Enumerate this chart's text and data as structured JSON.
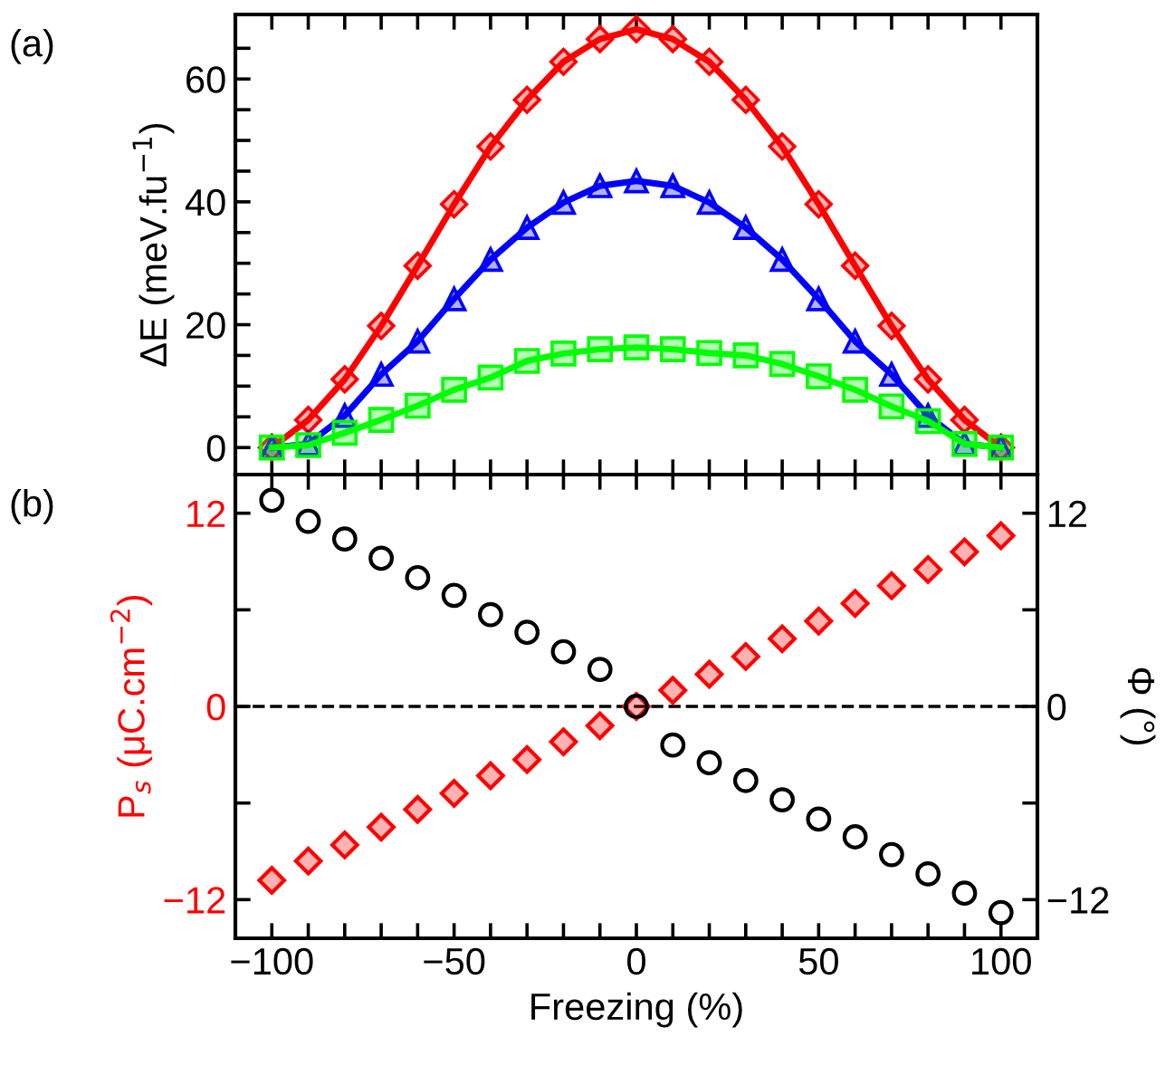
{
  "chart_data": [
    {
      "type": "line",
      "annotations": [
        "(a)"
      ],
      "ylabel": "ΔE (meV.fu$^{−1}$)",
      "x": [
        -100,
        -90,
        -80,
        -70,
        -60,
        -50,
        -40,
        -30,
        -20,
        -10,
        0,
        10,
        20,
        30,
        40,
        50,
        60,
        70,
        80,
        90,
        100
      ],
      "series": [
        {
          "color": "#ff0000",
          "marker": "diamond",
          "values": [
            0,
            4.5,
            11.1,
            19.8,
            29.6,
            39.6,
            49,
            56.6,
            62.8,
            66.5,
            68.1,
            66.5,
            62.8,
            56.6,
            49,
            39.6,
            29.6,
            19.8,
            11.1,
            4.5,
            0
          ]
        },
        {
          "color": "#0000ff",
          "marker": "triangle",
          "values": [
            0,
            0.6,
            5.2,
            11.9,
            17.3,
            24.2,
            30.6,
            35.8,
            39.9,
            42.6,
            43.4,
            42.6,
            39.9,
            35.8,
            30.6,
            24.2,
            17.3,
            11.9,
            5.2,
            0.6,
            0
          ]
        },
        {
          "color": "#00ff00",
          "marker": "square",
          "values": [
            0,
            0.4,
            2.4,
            4.5,
            6.8,
            9.4,
            11.4,
            14.1,
            15.3,
            16.0,
            16.3,
            16.0,
            15.4,
            15.0,
            13.6,
            11.6,
            9.4,
            6.7,
            4.3,
            0.6,
            0
          ]
        }
      ],
      "xlim": [
        -110,
        110
      ],
      "xticks": [
        -100,
        {
          "value": -90,
          "label": null
        },
        {
          "value": -80,
          "label": null
        },
        {
          "value": -70,
          "label": null
        },
        {
          "value": -60,
          "label": null
        },
        -50,
        {
          "value": -40,
          "label": null
        },
        {
          "value": -30,
          "label": null
        },
        {
          "value": -20,
          "label": null
        },
        {
          "value": -10,
          "label": null
        },
        0,
        {
          "value": 10,
          "label": null
        },
        {
          "value": 20,
          "label": null
        },
        {
          "value": 30,
          "label": null
        },
        {
          "value": 40,
          "label": null
        },
        50,
        {
          "value": 60,
          "label": null
        },
        {
          "value": 70,
          "label": null
        },
        {
          "value": 80,
          "label": null
        },
        {
          "value": 90,
          "label": null
        },
        100
      ],
      "ylim": [
        -4.4,
        70.5
      ],
      "yticks": [
        0,
        {
          "value": 5,
          "label": null
        },
        {
          "value": 10,
          "label": null
        },
        {
          "value": 15,
          "label": null
        },
        20,
        {
          "value": 25,
          "label": null
        },
        {
          "value": 30,
          "label": null
        },
        {
          "value": 35,
          "label": null
        },
        40,
        {
          "value": 45,
          "label": null
        },
        {
          "value": 50,
          "label": null
        },
        {
          "value": 55,
          "label": null
        },
        60,
        {
          "value": 65,
          "label": null
        }
      ],
      "tick_labels": "y",
      "grid": false,
      "legend": false,
      "line_style": "solid"
    },
    {
      "type": "scatter",
      "annotations": [
        "(b)"
      ],
      "xlabel": "Freezing (%)",
      "ylabel": "P$_{s}$ (μC.cm$^{−2}$)",
      "y2label": "Φ (°)",
      "x": [
        -100,
        -90,
        -80,
        -70,
        -60,
        -50,
        -40,
        -30,
        -20,
        -10,
        0,
        10,
        20,
        30,
        40,
        50,
        60,
        70,
        80,
        90,
        100
      ],
      "series": [
        {
          "color": "#ff0000",
          "marker": "diamond",
          "values": [
            -10.8,
            -9.6,
            -8.6,
            -7.5,
            -6.4,
            -5.4,
            -4.3,
            -3.3,
            -2.2,
            -1.2,
            0,
            1.0,
            2.0,
            3.1,
            4.2,
            5.3,
            6.4,
            7.5,
            8.5,
            9.6,
            10.6
          ]
        },
        {
          "color": "#000000",
          "marker": "circle",
          "axis": "y2",
          "values": [
            12.8,
            11.5,
            10.4,
            9.2,
            8.0,
            6.9,
            5.7,
            4.6,
            3.4,
            2.3,
            0,
            -2.4,
            -3.5,
            -4.6,
            -5.8,
            -7.0,
            -8.1,
            -9.2,
            -10.4,
            -11.6,
            -12.8
          ]
        }
      ],
      "xlim": [
        -110,
        110
      ],
      "xticks": [
        -100,
        {
          "value": -90,
          "label": null
        },
        {
          "value": -80,
          "label": null
        },
        {
          "value": -70,
          "label": null
        },
        {
          "value": -60,
          "label": null
        },
        -50,
        {
          "value": -40,
          "label": null
        },
        {
          "value": -30,
          "label": null
        },
        {
          "value": -20,
          "label": null
        },
        {
          "value": -10,
          "label": null
        },
        0,
        {
          "value": 10,
          "label": null
        },
        {
          "value": 20,
          "label": null
        },
        {
          "value": 30,
          "label": null
        },
        {
          "value": 40,
          "label": null
        },
        50,
        {
          "value": 60,
          "label": null
        },
        {
          "value": 70,
          "label": null
        },
        {
          "value": 80,
          "label": null
        },
        {
          "value": 90,
          "label": null
        },
        100
      ],
      "ylim": [
        -14.4,
        14.4
      ],
      "yticks": [
        -12,
        {
          "value": -6,
          "label": null
        },
        0,
        {
          "value": 6,
          "label": null
        },
        12
      ],
      "y2lim": [
        -14.4,
        14.4
      ],
      "y2ticks": [
        -12,
        {
          "value": -6,
          "label": null
        },
        0,
        {
          "value": 6,
          "label": null
        },
        12
      ],
      "ref_lines": [
        {
          "axis": "y",
          "value": 0,
          "label": null,
          "color": "#000000",
          "line_style": "dashed"
        }
      ],
      "grid": false,
      "legend": false
    }
  ]
}
